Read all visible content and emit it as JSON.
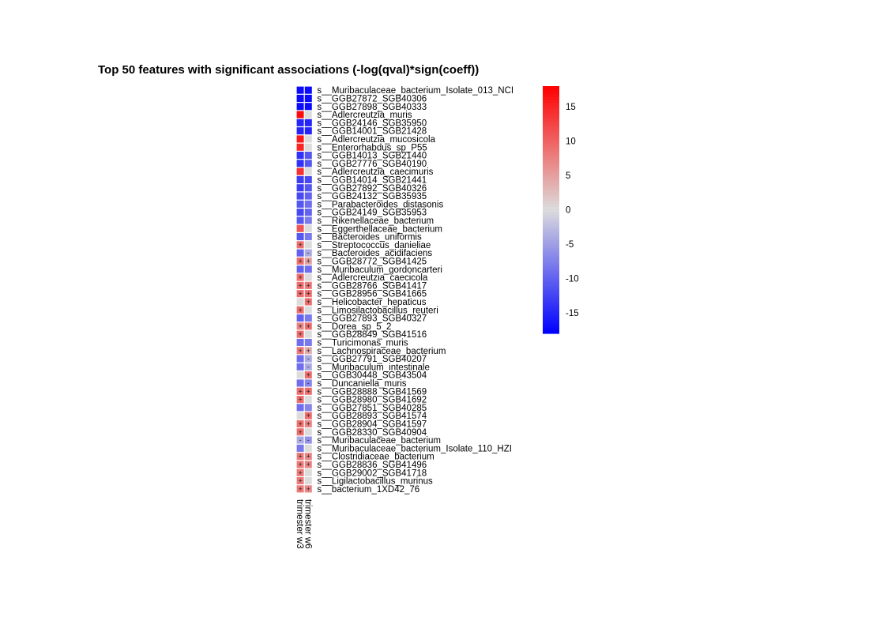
{
  "chart_data": {
    "type": "heatmap",
    "title": "Top 50 features with significant associations (-log(qval)*sign(coeff))",
    "columns": [
      "trimester w3",
      "trimester w6"
    ],
    "rows": [
      {
        "label": "s__Muribaculaceae_bacterium_Isolate_013_NCI",
        "values": [
          -17,
          -17
        ],
        "marks": [
          "",
          ""
        ]
      },
      {
        "label": "s__GGB27872_SGB40306",
        "values": [
          -17,
          -17
        ],
        "marks": [
          "",
          ""
        ]
      },
      {
        "label": "s__GGB27898_SGB40333",
        "values": [
          -17,
          -17
        ],
        "marks": [
          "",
          ""
        ]
      },
      {
        "label": "s__Adlercreutzia_muris",
        "values": [
          17,
          0
        ],
        "marks": [
          "",
          ""
        ]
      },
      {
        "label": "s__GGB24146_SGB35950",
        "values": [
          -15,
          -15
        ],
        "marks": [
          "",
          ""
        ]
      },
      {
        "label": "s__GGB14001_SGB21428",
        "values": [
          -15,
          -15
        ],
        "marks": [
          "",
          ""
        ]
      },
      {
        "label": "s__Adlercreutzia_mucosicola",
        "values": [
          16,
          0
        ],
        "marks": [
          "",
          ""
        ]
      },
      {
        "label": "s__Enterorhabdus_sp_P55",
        "values": [
          15,
          0
        ],
        "marks": [
          "",
          ""
        ]
      },
      {
        "label": "s__GGB14013_SGB21440",
        "values": [
          -14,
          -11
        ],
        "marks": [
          "",
          ""
        ]
      },
      {
        "label": "s__GGB27776_SGB40190",
        "values": [
          -14,
          -11
        ],
        "marks": [
          "",
          ""
        ]
      },
      {
        "label": "s__Adlercreutzia_caecimuris",
        "values": [
          14,
          0
        ],
        "marks": [
          "",
          ""
        ]
      },
      {
        "label": "s__GGB14014_SGB21441",
        "values": [
          -13,
          -12
        ],
        "marks": [
          "",
          ""
        ]
      },
      {
        "label": "s__GGB27892_SGB40326",
        "values": [
          -13,
          -11
        ],
        "marks": [
          "",
          ""
        ]
      },
      {
        "label": "s__GGB24132_SGB35935",
        "values": [
          -12,
          -10
        ],
        "marks": [
          "",
          ""
        ]
      },
      {
        "label": "s__Parabacteroides_distasonis",
        "values": [
          -11,
          -9
        ],
        "marks": [
          "",
          ""
        ]
      },
      {
        "label": "s__GGB24149_SGB35953",
        "values": [
          -12,
          -10
        ],
        "marks": [
          "",
          ""
        ]
      },
      {
        "label": "s__Rikenellaceae_bacterium",
        "values": [
          -11,
          -8
        ],
        "marks": [
          "",
          ""
        ]
      },
      {
        "label": "s__Eggerthellaceae_bacterium",
        "values": [
          11,
          0
        ],
        "marks": [
          "",
          ""
        ]
      },
      {
        "label": "s__Bacteroides_uniformis",
        "values": [
          -11,
          -8
        ],
        "marks": [
          "",
          ""
        ]
      },
      {
        "label": "s__Streptococcus_danieliae",
        "values": [
          9,
          0
        ],
        "marks": [
          "+",
          ""
        ]
      },
      {
        "label": "s__Bacteroides_acidifaciens",
        "values": [
          -10,
          -4
        ],
        "marks": [
          "",
          "-"
        ]
      },
      {
        "label": "s__GGB28772_SGB41425",
        "values": [
          9,
          5
        ],
        "marks": [
          "+",
          "+"
        ]
      },
      {
        "label": "s__Muribaculum_gordoncarteri",
        "values": [
          -10,
          -9
        ],
        "marks": [
          "",
          ""
        ]
      },
      {
        "label": "s__Adlercreutzia_caecicola",
        "values": [
          9,
          0
        ],
        "marks": [
          "+",
          ""
        ]
      },
      {
        "label": "s__GGB28766_SGB41417",
        "values": [
          9,
          8
        ],
        "marks": [
          "+",
          "+"
        ]
      },
      {
        "label": "s__GGB28956_SGB41665",
        "values": [
          9,
          9
        ],
        "marks": [
          "+",
          "+"
        ]
      },
      {
        "label": "s__Helicobacter_hepaticus",
        "values": [
          0,
          9
        ],
        "marks": [
          "",
          "+"
        ]
      },
      {
        "label": "s__Limosilactobacillus_reuteri",
        "values": [
          9,
          0
        ],
        "marks": [
          "+",
          ""
        ]
      },
      {
        "label": "s__GGB27893_SGB40327",
        "values": [
          -10,
          -8
        ],
        "marks": [
          "",
          ""
        ]
      },
      {
        "label": "s__Dorea_sp_5_2",
        "values": [
          7,
          9
        ],
        "marks": [
          "+",
          "+"
        ]
      },
      {
        "label": "s__GGB28849_SGB41516",
        "values": [
          9,
          0
        ],
        "marks": [
          "+",
          ""
        ]
      },
      {
        "label": "s__Turicimonas_muris",
        "values": [
          -9,
          -8
        ],
        "marks": [
          "",
          ""
        ]
      },
      {
        "label": "s__Lachnospiraceae_bacterium",
        "values": [
          8,
          4
        ],
        "marks": [
          "+",
          "+"
        ]
      },
      {
        "label": "s__GGB27791_SGB40207",
        "values": [
          -9,
          -4
        ],
        "marks": [
          "",
          "-"
        ]
      },
      {
        "label": "s__Muribaculum_intestinale",
        "values": [
          -9,
          -4
        ],
        "marks": [
          "",
          "-"
        ]
      },
      {
        "label": "s__GGB30448_SGB43504",
        "values": [
          0,
          9
        ],
        "marks": [
          "",
          "+"
        ]
      },
      {
        "label": "s__Duncaniella_muris",
        "values": [
          -9,
          -7
        ],
        "marks": [
          "",
          "-"
        ]
      },
      {
        "label": "s__GGB28888_SGB41569",
        "values": [
          9,
          9
        ],
        "marks": [
          "+",
          "+"
        ]
      },
      {
        "label": "s__GGB28980_SGB41692",
        "values": [
          9,
          0
        ],
        "marks": [
          "+",
          ""
        ]
      },
      {
        "label": "s__GGB27851_SGB40285",
        "values": [
          -9,
          -7
        ],
        "marks": [
          "",
          ""
        ]
      },
      {
        "label": "s__GGB28893_SGB41574",
        "values": [
          0,
          9
        ],
        "marks": [
          "",
          "+"
        ]
      },
      {
        "label": "s__GGB28904_SGB41597",
        "values": [
          9,
          7
        ],
        "marks": [
          "+",
          "+"
        ]
      },
      {
        "label": "s__GGB28330_SGB40904",
        "values": [
          9,
          0
        ],
        "marks": [
          "+",
          ""
        ]
      },
      {
        "label": "s__Muribaculaceae_bacterium",
        "values": [
          -4,
          -6
        ],
        "marks": [
          "-",
          "-"
        ]
      },
      {
        "label": "s__Muribaculaceae_bacterium_Isolate_110_HZI",
        "values": [
          -8,
          0
        ],
        "marks": [
          "",
          ""
        ]
      },
      {
        "label": "s__Clostridiaceae_bacterium",
        "values": [
          8,
          7
        ],
        "marks": [
          "+",
          "+"
        ]
      },
      {
        "label": "s__GGB28836_SGB41496",
        "values": [
          8,
          7
        ],
        "marks": [
          "+",
          "+"
        ]
      },
      {
        "label": "s__GGB29002_SGB41718",
        "values": [
          8,
          0
        ],
        "marks": [
          "+",
          ""
        ]
      },
      {
        "label": "s__Ligilactobacillus_murinus",
        "values": [
          8,
          0
        ],
        "marks": [
          "+",
          ""
        ]
      },
      {
        "label": "s__bacterium_1XD42_76",
        "values": [
          8,
          7
        ],
        "marks": [
          "+",
          "+"
        ]
      }
    ],
    "colorbar": {
      "range": [
        -18,
        18
      ],
      "ticks": [
        15,
        10,
        5,
        0,
        -5,
        -10,
        -15
      ],
      "colors": {
        "low": "#0000ff",
        "mid": "#dcdcdc",
        "high": "#ff0000"
      }
    }
  }
}
